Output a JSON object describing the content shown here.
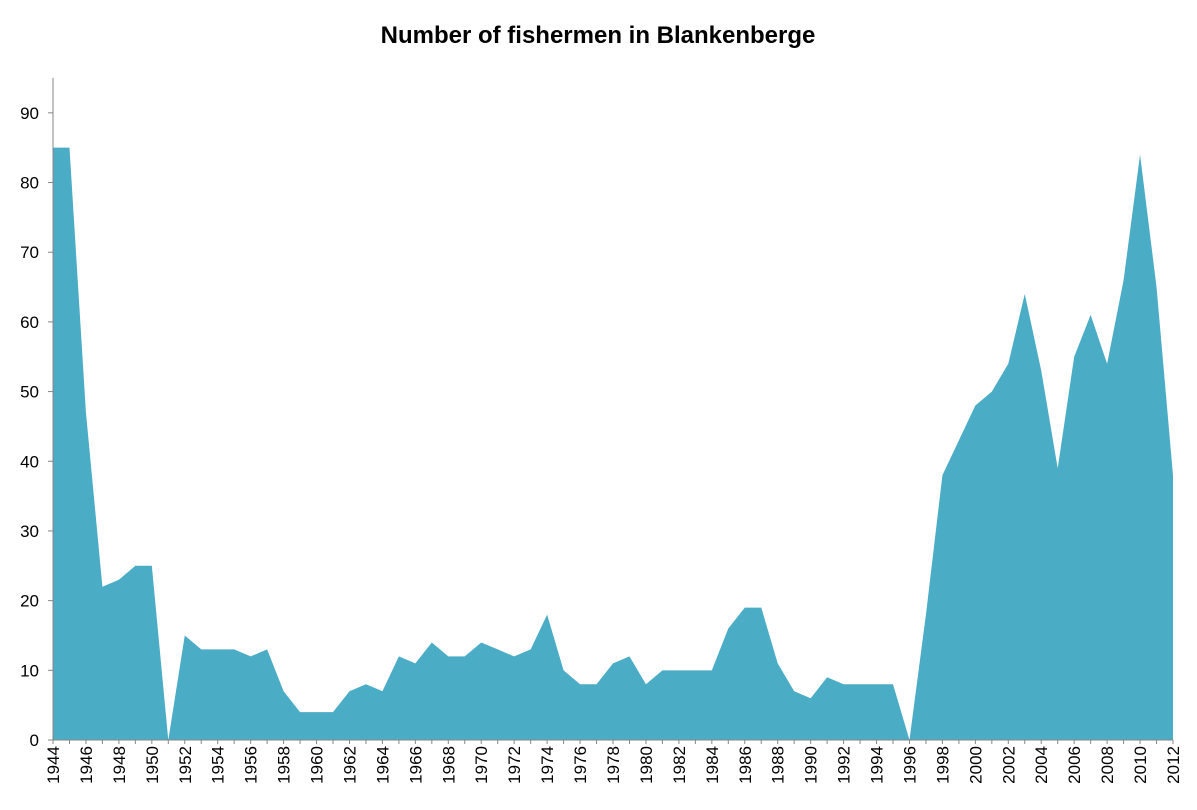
{
  "chart_data": {
    "type": "area",
    "title": "Number of fishermen in Blankenberge",
    "xlabel": "",
    "ylabel": "",
    "x": [
      1944,
      1945,
      1946,
      1947,
      1948,
      1949,
      1950,
      1951,
      1952,
      1953,
      1954,
      1955,
      1956,
      1957,
      1958,
      1959,
      1960,
      1961,
      1962,
      1963,
      1964,
      1965,
      1966,
      1967,
      1968,
      1969,
      1970,
      1971,
      1972,
      1973,
      1974,
      1975,
      1976,
      1977,
      1978,
      1979,
      1980,
      1981,
      1982,
      1983,
      1984,
      1985,
      1986,
      1987,
      1988,
      1989,
      1990,
      1991,
      1992,
      1993,
      1994,
      1995,
      1996,
      1997,
      1998,
      1999,
      2000,
      2001,
      2002,
      2003,
      2004,
      2005,
      2006,
      2007,
      2008,
      2009,
      2010,
      2011,
      2012
    ],
    "values": [
      85,
      85,
      47,
      22,
      23,
      25,
      25,
      0,
      15,
      13,
      13,
      13,
      12,
      13,
      7,
      4,
      4,
      4,
      7,
      8,
      7,
      12,
      11,
      14,
      12,
      12,
      14,
      13,
      12,
      13,
      18,
      10,
      8,
      8,
      11,
      12,
      8,
      10,
      10,
      10,
      10,
      16,
      19,
      19,
      11,
      7,
      6,
      9,
      8,
      8,
      8,
      8,
      0,
      18,
      38,
      43,
      48,
      50,
      54,
      64,
      53,
      39,
      55,
      61,
      54,
      66,
      84,
      65,
      38
    ],
    "x_tick_labels": [
      "1944",
      "1946",
      "1948",
      "1950",
      "1952",
      "1954",
      "1956",
      "1958",
      "1960",
      "1962",
      "1964",
      "1966",
      "1968",
      "1970",
      "1972",
      "1974",
      "1976",
      "1978",
      "1980",
      "1982",
      "1984",
      "1986",
      "1988",
      "1990",
      "1992",
      "1994",
      "1996",
      "1998",
      "2000",
      "2002",
      "2004",
      "2006",
      "2008",
      "2010",
      "2012"
    ],
    "y_tick_labels": [
      "0",
      "10",
      "20",
      "30",
      "40",
      "50",
      "60",
      "70",
      "80",
      "90"
    ],
    "ylim": [
      0,
      95
    ],
    "xlim": [
      1944,
      2012
    ],
    "grid": false,
    "legend": "none",
    "fill_color": "#4BACC6"
  }
}
